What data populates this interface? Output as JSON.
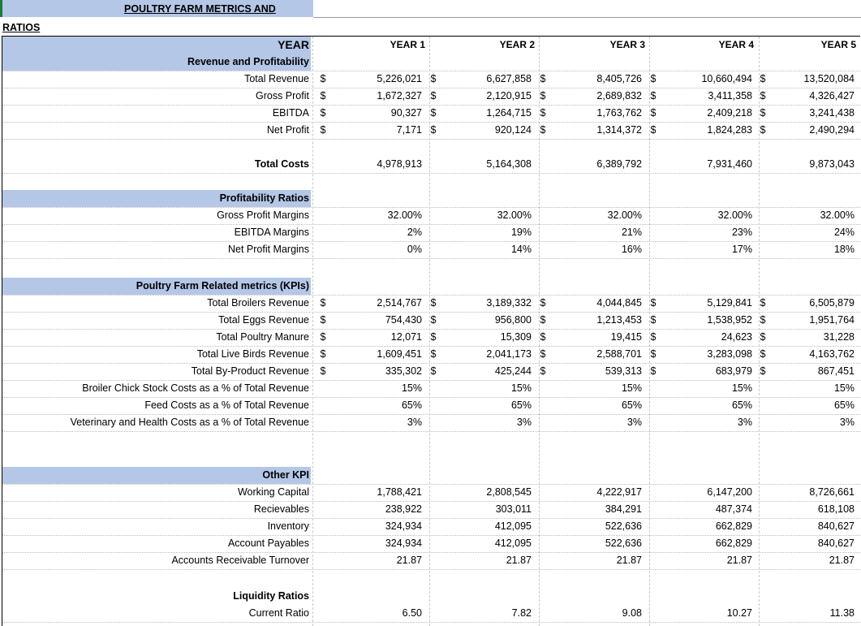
{
  "title": "POULTRY FARM METRICS AND RATIOS",
  "header": {
    "label": "YEAR",
    "years": [
      "YEAR 1",
      "YEAR 2",
      "YEAR 3",
      "YEAR 4",
      "YEAR 5"
    ]
  },
  "currency_symbol": "$",
  "colors": {
    "header_fill": "#b4c7e7",
    "gridline": "#c8c8c8"
  },
  "sections": [
    {
      "title": "Revenue and Profitability",
      "rows": [
        {
          "label": "Total Revenue",
          "dollar": true,
          "values": [
            "5,226,021",
            "6,627,858",
            "8,405,726",
            "10,660,494",
            "13,520,084"
          ]
        },
        {
          "label": "Gross Profit",
          "dollar": true,
          "values": [
            "1,672,327",
            "2,120,915",
            "2,689,832",
            "3,411,358",
            "4,326,427"
          ]
        },
        {
          "label": "EBITDA",
          "dollar": true,
          "values": [
            "90,327",
            "1,264,715",
            "1,763,762",
            "2,409,218",
            "3,241,438"
          ]
        },
        {
          "label": "Net Profit",
          "dollar": true,
          "values": [
            "7,171",
            "920,124",
            "1,314,372",
            "1,824,283",
            "2,490,294"
          ]
        }
      ]
    },
    {
      "rows": [
        {
          "label": "Total Costs",
          "bold": true,
          "values": [
            "4,978,913",
            "5,164,308",
            "6,389,792",
            "7,931,460",
            "9,873,043"
          ]
        }
      ]
    },
    {
      "title": "Profitability Ratios",
      "rows": [
        {
          "label": "Gross Profit Margins",
          "values": [
            "32.00%",
            "32.00%",
            "32.00%",
            "32.00%",
            "32.00%"
          ]
        },
        {
          "label": "EBITDA Margins",
          "values": [
            "2%",
            "19%",
            "21%",
            "23%",
            "24%"
          ]
        },
        {
          "label": "Net Profit Margins",
          "values": [
            "0%",
            "14%",
            "16%",
            "17%",
            "18%"
          ]
        }
      ]
    },
    {
      "title": "Poultry Farm Related metrics (KPIs)",
      "rows": [
        {
          "label": "Total Broilers Revenue",
          "dollar": true,
          "values": [
            "2,514,767",
            "3,189,332",
            "4,044,845",
            "5,129,841",
            "6,505,879"
          ]
        },
        {
          "label": "Total Eggs Revenue",
          "dollar": true,
          "values": [
            "754,430",
            "956,800",
            "1,213,453",
            "1,538,952",
            "1,951,764"
          ]
        },
        {
          "label": "Total Poultry Manure",
          "dollar": true,
          "values": [
            "12,071",
            "15,309",
            "19,415",
            "24,623",
            "31,228"
          ]
        },
        {
          "label": "Total Live Birds Revenue",
          "dollar": true,
          "values": [
            "1,609,451",
            "2,041,173",
            "2,588,701",
            "3,283,098",
            "4,163,762"
          ]
        },
        {
          "label": "Total By-Product Revenue",
          "dollar": true,
          "values": [
            "335,302",
            "425,244",
            "539,313",
            "683,979",
            "867,451"
          ]
        },
        {
          "label": "Broiler Chick Stock Costs as a % of Total Revenue",
          "values": [
            "15%",
            "15%",
            "15%",
            "15%",
            "15%"
          ]
        },
        {
          "label": "Feed Costs as a % of Total Revenue",
          "values": [
            "65%",
            "65%",
            "65%",
            "65%",
            "65%"
          ]
        },
        {
          "label": "Veterinary and Health Costs as a % of Total Revenue",
          "values": [
            "3%",
            "3%",
            "3%",
            "3%",
            "3%"
          ]
        }
      ]
    },
    {
      "title": "Other KPI",
      "rows": [
        {
          "label": "Working Capital",
          "values": [
            "1,788,421",
            "2,808,545",
            "4,222,917",
            "6,147,200",
            "8,726,661"
          ]
        },
        {
          "label": "Recievables",
          "values": [
            "238,922",
            "303,011",
            "384,291",
            "487,374",
            "618,108"
          ]
        },
        {
          "label": "Inventory",
          "values": [
            "324,934",
            "412,095",
            "522,636",
            "662,829",
            "840,627"
          ]
        },
        {
          "label": "Account Payables",
          "values": [
            "324,934",
            "412,095",
            "522,636",
            "662,829",
            "840,627"
          ]
        },
        {
          "label": "Accounts Receivable Turnover",
          "values": [
            "21.87",
            "21.87",
            "21.87",
            "21.87",
            "21.87"
          ]
        }
      ]
    },
    {
      "title": "Liquidity Ratios",
      "rows": [
        {
          "label": "Current Ratio",
          "values": [
            "6.50",
            "7.82",
            "9.08",
            "10.27",
            "11.38"
          ]
        }
      ]
    }
  ]
}
